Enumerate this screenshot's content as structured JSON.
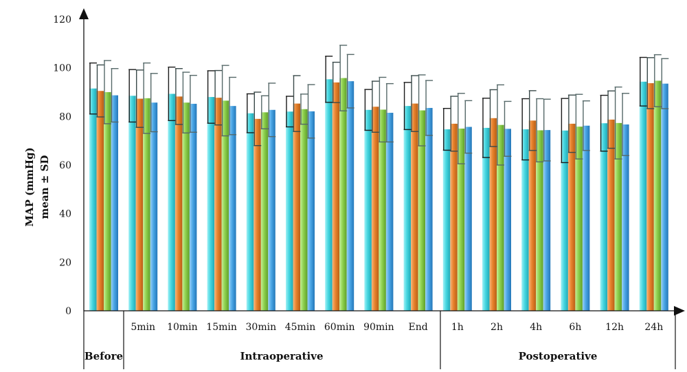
{
  "chart_data": {
    "type": "bar",
    "ylabel_line1": "MAP (mmHg)",
    "ylabel_line2": "mean ± SD",
    "ylim": [
      0,
      120
    ],
    "yticks": [
      0,
      20,
      40,
      60,
      80,
      100,
      120
    ],
    "categories": [
      "Before",
      "5min",
      "10min",
      "15min",
      "30min",
      "45min",
      "60min",
      "90min",
      "End",
      "1h",
      "2h",
      "4h",
      "6h",
      "12h",
      "24h"
    ],
    "groups": [
      {
        "label": "Before",
        "span": [
          0,
          0
        ]
      },
      {
        "label": "Intraoperative",
        "span": [
          1,
          8
        ]
      },
      {
        "label": "Postoperative",
        "span": [
          9,
          14
        ]
      }
    ],
    "series": [
      {
        "color": "#45d6e0",
        "values": [
          91.5,
          88.5,
          89.3,
          88,
          81.3,
          82,
          95.3,
          82.7,
          84.3,
          74.7,
          75.3,
          74.7,
          74.2,
          77.2,
          94.3
        ],
        "sd": [
          10.5,
          10.8,
          11,
          10.8,
          8,
          6.3,
          9.5,
          8.4,
          9.7,
          8.6,
          12.2,
          12.6,
          13.2,
          11.5,
          10
        ]
      },
      {
        "color": "#e8822c",
        "values": [
          90.5,
          87.3,
          88.2,
          87.7,
          79,
          85.3,
          94,
          84,
          85.3,
          77,
          79.3,
          78.3,
          77,
          78.7,
          93.7
        ],
        "sd": [
          10.7,
          11.8,
          11.5,
          11.2,
          11,
          11.5,
          8.3,
          10.5,
          11.5,
          11.3,
          11.7,
          12.3,
          11.8,
          11.8,
          10.5
        ]
      },
      {
        "color": "#8ed14e",
        "values": [
          90,
          87.5,
          85.7,
          86.5,
          81.7,
          83,
          95.8,
          82.8,
          82.5,
          75,
          76.5,
          74.3,
          75.8,
          77.3,
          94.7
        ],
        "sd": [
          13,
          14.5,
          12.5,
          14.5,
          6.8,
          6.2,
          13.5,
          13.3,
          14.6,
          14.5,
          16.5,
          13,
          13.3,
          14.8,
          10.7
        ]
      },
      {
        "color": "#4aa6e6",
        "values": [
          88.7,
          85.7,
          85.2,
          84.3,
          82.7,
          82.1,
          94.5,
          81.5,
          83.5,
          75.7,
          74.9,
          74.4,
          76.2,
          76.7,
          93.5
        ],
        "sd": [
          11,
          12,
          11.7,
          11.8,
          11,
          11,
          11,
          12,
          11.3,
          10.8,
          11.3,
          12.7,
          10.2,
          12.8,
          10.3
        ]
      }
    ]
  }
}
